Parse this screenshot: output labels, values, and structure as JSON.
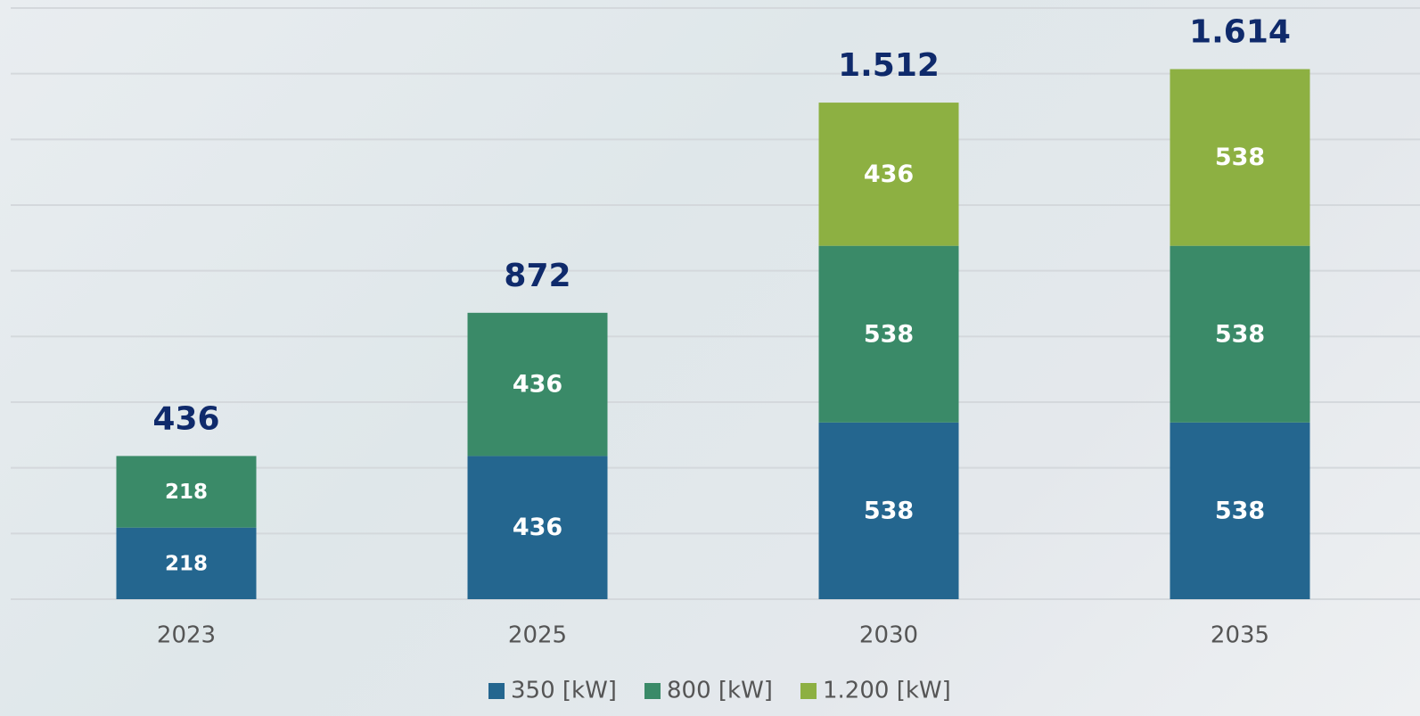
{
  "chart_data": {
    "type": "stacked-bar",
    "categories": [
      "2023",
      "2025",
      "2030",
      "2035"
    ],
    "series": [
      {
        "name": "350 [kW]",
        "color": "#24668f",
        "values": [
          218,
          436,
          538,
          538
        ]
      },
      {
        "name": "800 [kW]",
        "color": "#3a8a68",
        "values": [
          218,
          436,
          538,
          538
        ]
      },
      {
        "name": "1.200 [kW]",
        "color": "#8db042",
        "values": [
          null,
          null,
          436,
          538
        ]
      }
    ],
    "totals": {
      "values": [
        436,
        872,
        1512,
        1614
      ],
      "value_labels": [
        "436",
        "872",
        "1.512",
        "1.614"
      ],
      "color": "#0f2a6b"
    },
    "ylim": [
      0,
      1800
    ],
    "yticks": [
      0,
      200,
      400,
      600,
      800,
      1000,
      1200,
      1400,
      1600,
      1800
    ],
    "grid": true,
    "legend": "bottom"
  }
}
